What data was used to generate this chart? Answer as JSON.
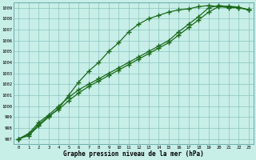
{
  "x": [
    0,
    1,
    2,
    3,
    4,
    5,
    6,
    7,
    8,
    9,
    10,
    11,
    12,
    13,
    14,
    15,
    16,
    17,
    18,
    19,
    20,
    21,
    22,
    23
  ],
  "line1": [
    997.0,
    997.3,
    998.2,
    999.0,
    999.8,
    1001.0,
    1002.2,
    1003.2,
    1004.0,
    1005.0,
    1005.8,
    1006.8,
    1007.5,
    1008.0,
    1008.3,
    1008.6,
    1008.8,
    1008.9,
    1009.1,
    1009.2,
    1009.1,
    1009.0,
    1009.0,
    1008.8
  ],
  "line2": [
    997.0,
    997.5,
    998.5,
    999.2,
    1000.0,
    1000.8,
    1001.5,
    1002.0,
    1002.5,
    1003.0,
    1003.5,
    1004.0,
    1004.5,
    1005.0,
    1005.5,
    1006.0,
    1006.8,
    1007.5,
    1008.2,
    1009.0,
    1009.2,
    1009.1,
    1009.0,
    1008.8
  ],
  "line3": [
    997.0,
    997.4,
    998.3,
    999.1,
    999.7,
    1000.5,
    1001.2,
    1001.8,
    1002.3,
    1002.8,
    1003.3,
    1003.8,
    1004.3,
    1004.8,
    1005.3,
    1005.8,
    1006.5,
    1007.2,
    1007.9,
    1008.6,
    1009.1,
    1009.15,
    1009.05,
    1008.8
  ],
  "ylim_min": 996.5,
  "ylim_max": 1009.5,
  "yticks": [
    997,
    998,
    999,
    1000,
    1001,
    1002,
    1003,
    1004,
    1005,
    1006,
    1007,
    1008,
    1009
  ],
  "xticks": [
    0,
    1,
    2,
    3,
    4,
    5,
    6,
    7,
    8,
    9,
    10,
    11,
    12,
    13,
    14,
    15,
    16,
    17,
    18,
    19,
    20,
    21,
    22,
    23
  ],
  "xlabel": "Graphe pression niveau de la mer (hPa)",
  "line_color": "#1a6b1a",
  "bg_color": "#c8eee8",
  "grid_color": "#88c4bc",
  "marker": "+",
  "marker_size": 4,
  "linewidth": 0.9
}
